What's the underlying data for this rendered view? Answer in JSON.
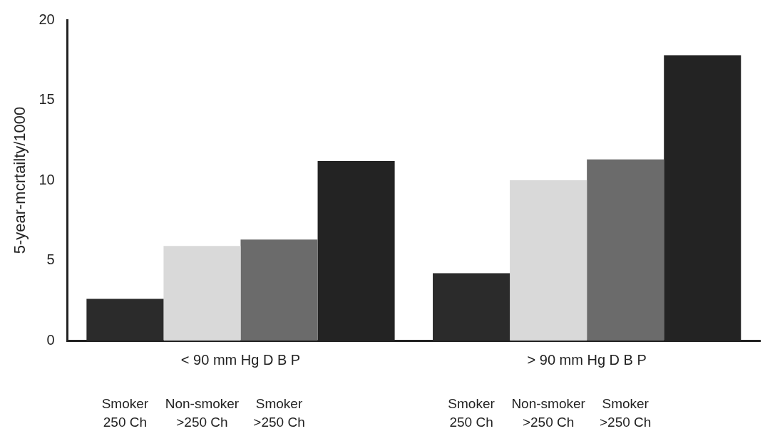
{
  "chart_data": {
    "type": "bar",
    "ylabel": "5-year-mcrtailty/1000",
    "categories": [
      "< 90 mm Hg D B P",
      "> 90 mm Hg D B P"
    ],
    "series": [
      {
        "color": "#2b2b2b",
        "values": [
          2.6,
          4.2
        ]
      },
      {
        "color": "#d9d9d9",
        "values": [
          5.9,
          10.0
        ]
      },
      {
        "color": "#6b6b6b",
        "values": [
          6.3,
          11.3
        ]
      },
      {
        "color": "#232323",
        "values": [
          11.2,
          17.8
        ]
      }
    ],
    "ylim": [
      0,
      20
    ],
    "yticks": [
      0,
      5,
      10,
      15,
      20
    ],
    "grid": false,
    "legend": false,
    "annotations": [
      "Smoker 250 Ch",
      "Non-smoker >250 Ch",
      "Smoker >250 Ch",
      "Smoker 250 Ch",
      "Non-smoker >250 Ch",
      "Smoker >250 Ch"
    ]
  }
}
